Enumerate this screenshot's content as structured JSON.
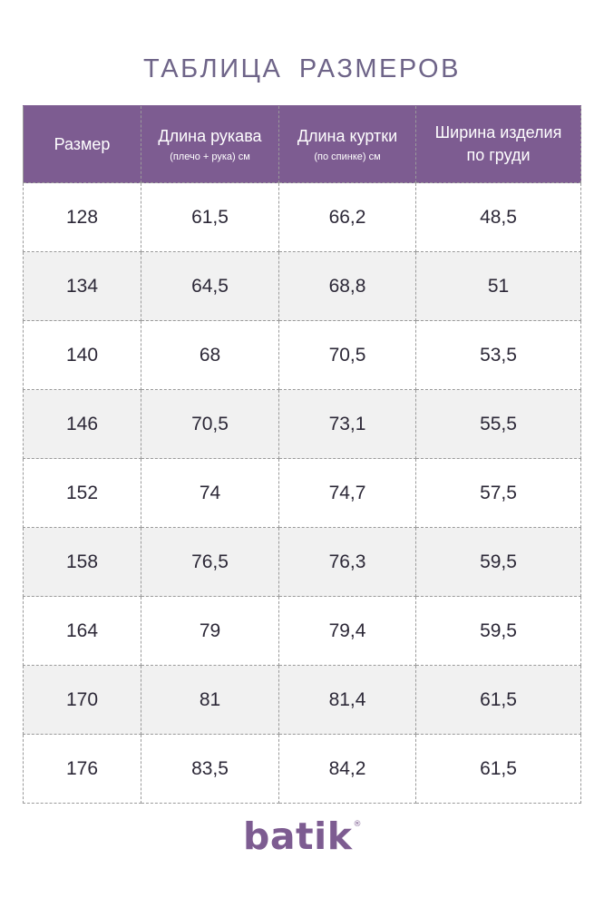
{
  "title": "ТАБЛИЦА РАЗМЕРОВ",
  "table": {
    "headers": [
      {
        "main": "Размер",
        "sub": ""
      },
      {
        "main": "Длина рукава",
        "sub": "(плечо + рука) см"
      },
      {
        "main": "Длина куртки",
        "sub": "(по спинке) см"
      },
      {
        "main": "Ширина изделия по груди",
        "sub": ""
      }
    ],
    "rows": [
      [
        "128",
        "61,5",
        "66,2",
        "48,5"
      ],
      [
        "134",
        "64,5",
        "68,8",
        "51"
      ],
      [
        "140",
        "68",
        "70,5",
        "53,5"
      ],
      [
        "146",
        "70,5",
        "73,1",
        "55,5"
      ],
      [
        "152",
        "74",
        "74,7",
        "57,5"
      ],
      [
        "158",
        "76,5",
        "76,3",
        "59,5"
      ],
      [
        "164",
        "79",
        "79,4",
        "59,5"
      ],
      [
        "170",
        "81",
        "81,4",
        "61,5"
      ],
      [
        "176",
        "83,5",
        "84,2",
        "61,5"
      ]
    ]
  },
  "brand": {
    "name": "batik",
    "mark": "®",
    "color": "#7d5c91"
  },
  "colors": {
    "header_bg": "#7d5c91",
    "title": "#6e6488",
    "stripe": "#f1f1f1"
  }
}
